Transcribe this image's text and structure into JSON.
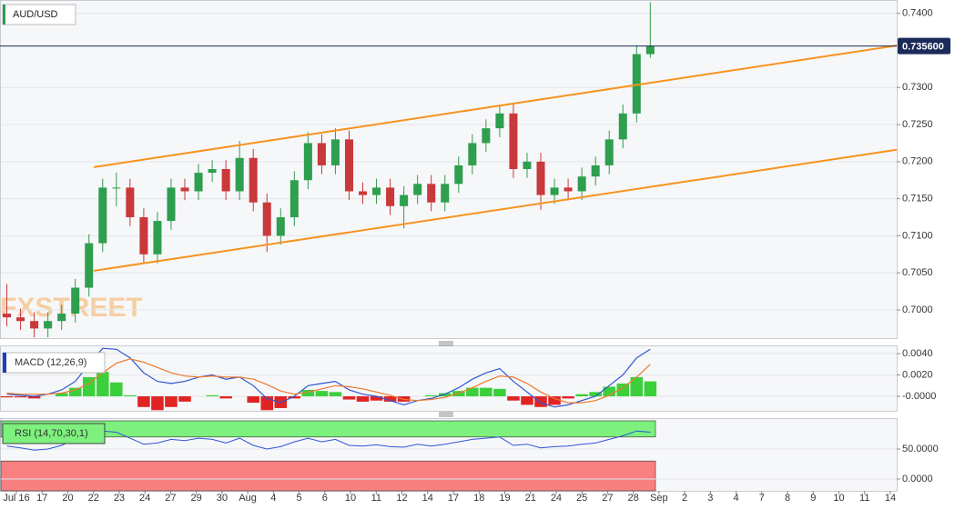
{
  "chart_data": [
    {
      "type": "candlestick",
      "title": "AUD/USD",
      "watermark": "FXSTREET",
      "xlim": [
        -0.5,
        65
      ],
      "ylim": [
        0.6962,
        0.7418
      ],
      "yticks": [
        {
          "value": 0.74,
          "label": "0.7400"
        },
        {
          "value": 0.73,
          "label": "0.7300"
        },
        {
          "value": 0.725,
          "label": "0.7250"
        },
        {
          "value": 0.72,
          "label": "0.7200"
        },
        {
          "value": 0.715,
          "label": "0.7150"
        },
        {
          "value": 0.71,
          "label": "0.7100"
        },
        {
          "value": 0.705,
          "label": "0.7050"
        },
        {
          "value": 0.7,
          "label": "0.7000"
        }
      ],
      "x_labels": [
        "Jul 16",
        "17",
        "20",
        "22",
        "23",
        "24",
        "27",
        "29",
        "30",
        "Aug",
        "4",
        "5",
        "6",
        "10",
        "11",
        "12",
        "14",
        "17",
        "18",
        "19",
        "21",
        "24",
        "25",
        "27",
        "28",
        "Sep",
        "2",
        "3",
        "4",
        "7",
        "8",
        "9",
        "10",
        "11",
        "14"
      ],
      "last_price": {
        "value": 0.7356,
        "label": "0.735600"
      },
      "up_color": "#2e9e4f",
      "down_color": "#c9383a",
      "grid": true,
      "open": [
        0.6995,
        0.699,
        0.6985,
        0.6975,
        0.6985,
        0.6995,
        0.703,
        0.709,
        0.7165,
        0.7165,
        0.7125,
        0.7075,
        0.712,
        0.7165,
        0.716,
        0.7185,
        0.719,
        0.716,
        0.7205,
        0.7145,
        0.71,
        0.7125,
        0.7175,
        0.7225,
        0.7195,
        0.723,
        0.716,
        0.7155,
        0.7165,
        0.714,
        0.7155,
        0.717,
        0.7145,
        0.717,
        0.7195,
        0.7225,
        0.7245,
        0.7265,
        0.719,
        0.72,
        0.7155,
        0.7165,
        0.716,
        0.718,
        0.7195,
        0.723,
        0.7265,
        0.7345
      ],
      "high": [
        0.7035,
        0.7002,
        0.6997,
        0.6997,
        0.7007,
        0.7042,
        0.7102,
        0.7177,
        0.7185,
        0.7177,
        0.7137,
        0.7132,
        0.7177,
        0.7177,
        0.7197,
        0.7202,
        0.7202,
        0.7228,
        0.7217,
        0.7157,
        0.7137,
        0.7187,
        0.724,
        0.7237,
        0.7245,
        0.7242,
        0.7172,
        0.7177,
        0.7177,
        0.7167,
        0.7182,
        0.7182,
        0.7182,
        0.7207,
        0.7237,
        0.7257,
        0.7277,
        0.7277,
        0.7212,
        0.7212,
        0.7177,
        0.7177,
        0.7192,
        0.7207,
        0.7242,
        0.7277,
        0.7357,
        0.7415
      ],
      "low": [
        0.6978,
        0.6973,
        0.6963,
        0.6963,
        0.6973,
        0.6983,
        0.7018,
        0.7078,
        0.714,
        0.7113,
        0.7063,
        0.7063,
        0.7108,
        0.7148,
        0.7148,
        0.7173,
        0.7148,
        0.7148,
        0.7133,
        0.7078,
        0.7088,
        0.7113,
        0.7163,
        0.7183,
        0.7183,
        0.7148,
        0.7143,
        0.7143,
        0.7128,
        0.711,
        0.7143,
        0.7133,
        0.7133,
        0.7158,
        0.7183,
        0.7213,
        0.7233,
        0.7178,
        0.7178,
        0.7135,
        0.7143,
        0.7148,
        0.7148,
        0.7168,
        0.7183,
        0.7218,
        0.7253,
        0.734
      ],
      "close": [
        0.699,
        0.6985,
        0.6975,
        0.6985,
        0.6995,
        0.703,
        0.709,
        0.7165,
        0.7165,
        0.7125,
        0.7075,
        0.712,
        0.7165,
        0.716,
        0.7185,
        0.719,
        0.716,
        0.7205,
        0.7145,
        0.71,
        0.7125,
        0.7175,
        0.7225,
        0.7195,
        0.723,
        0.716,
        0.7155,
        0.7165,
        0.714,
        0.7155,
        0.717,
        0.7145,
        0.717,
        0.7195,
        0.7225,
        0.7245,
        0.7265,
        0.719,
        0.72,
        0.7155,
        0.7165,
        0.716,
        0.718,
        0.7195,
        0.723,
        0.7265,
        0.7345,
        0.7356
      ],
      "channels": [
        {
          "x": [
            6.35,
            65
          ],
          "y": [
            0.71926,
            0.73566
          ],
          "color": "#f7931e"
        },
        {
          "x": [
            6.35,
            65
          ],
          "y": [
            0.70528,
            0.7216
          ],
          "color": "#f7931e"
        }
      ]
    },
    {
      "type": "macd",
      "title": "MACD (12,26,9)",
      "ylim": [
        -0.00136,
        0.00477
      ],
      "yticks": [
        {
          "value": 0.004,
          "label": "0.0040"
        },
        {
          "value": 0.002,
          "label": "0.0020"
        },
        {
          "value": 0,
          "label": "-0.0000"
        }
      ],
      "lines": [
        {
          "color": "#2f55d4",
          "values": [
            0.0002,
            0.0001,
            0.0,
            0.0002,
            0.0006,
            0.0014,
            0.003,
            0.0045,
            0.0044,
            0.0036,
            0.0022,
            0.0014,
            0.0012,
            0.0014,
            0.0018,
            0.002,
            0.0016,
            0.0018,
            0.001,
            -0.0002,
            -0.0006,
            0.0,
            0.001,
            0.0012,
            0.0014,
            0.0006,
            0.0002,
            0.0,
            -0.0004,
            -0.0008,
            -0.0004,
            -0.0002,
            0.0002,
            0.0008,
            0.0016,
            0.0022,
            0.0026,
            0.0014,
            0.0004,
            -0.0006,
            -0.001,
            -0.0008,
            -0.0004,
            0.0,
            0.001,
            0.002,
            0.0036,
            0.0044
          ]
        },
        {
          "color": "#ec7a2b",
          "values": [
            0.0003,
            0.0002,
            0.0002,
            0.0002,
            0.0003,
            0.0006,
            0.0012,
            0.0022,
            0.0031,
            0.0035,
            0.0032,
            0.0027,
            0.0022,
            0.0019,
            0.0018,
            0.0019,
            0.0018,
            0.0018,
            0.0016,
            0.0011,
            0.0005,
            0.0002,
            0.0004,
            0.0007,
            0.001,
            0.0009,
            0.0007,
            0.0004,
            0.0001,
            -0.0003,
            -0.0004,
            -0.0003,
            -0.0001,
            0.0003,
            0.0008,
            0.0014,
            0.0019,
            0.0018,
            0.0012,
            0.0004,
            -0.0002,
            -0.0006,
            -0.0006,
            -0.0004,
            0.0001,
            0.0008,
            0.0018,
            0.003
          ]
        }
      ],
      "histogram": {
        "up_color": "#3ccf3c",
        "down_color": "#e02424",
        "values": [
          -0.0001,
          -0.0001,
          -0.0002,
          0.0,
          0.0003,
          0.0008,
          0.0018,
          0.0023,
          0.0013,
          0.0001,
          -0.001,
          -0.0013,
          -0.001,
          -0.0005,
          0.0,
          0.0001,
          -0.0002,
          0.0,
          -0.0006,
          -0.0013,
          -0.0011,
          -0.0002,
          0.0006,
          0.0005,
          0.0004,
          -0.0003,
          -0.0005,
          -0.0004,
          -0.0005,
          -0.0005,
          0.0,
          0.0001,
          0.0003,
          0.0005,
          0.0008,
          0.0008,
          0.0007,
          -0.0004,
          -0.0008,
          -0.001,
          -0.0008,
          -0.0002,
          0.0002,
          0.0004,
          0.0009,
          0.0012,
          0.0018,
          0.0014
        ]
      }
    },
    {
      "type": "rsi",
      "title": "RSI (14,70,30,1)",
      "ylim": [
        -19.7,
        101.5
      ],
      "yticks": [
        {
          "value": 50,
          "label": "50.0000"
        },
        {
          "value": 0,
          "label": "0.0000"
        }
      ],
      "upper": 70,
      "lower": 30,
      "upper_color": "#7df07d",
      "lower_color": "#f88080",
      "color": "#2f55d4",
      "values": [
        55,
        52,
        48,
        50,
        56,
        66,
        75,
        80,
        78,
        68,
        58,
        60,
        66,
        64,
        68,
        66,
        60,
        68,
        56,
        50,
        54,
        62,
        68,
        62,
        66,
        56,
        55,
        57,
        54,
        53,
        58,
        55,
        58,
        62,
        66,
        68,
        70,
        56,
        58,
        52,
        54,
        55,
        58,
        60,
        66,
        72,
        80,
        78
      ]
    }
  ]
}
